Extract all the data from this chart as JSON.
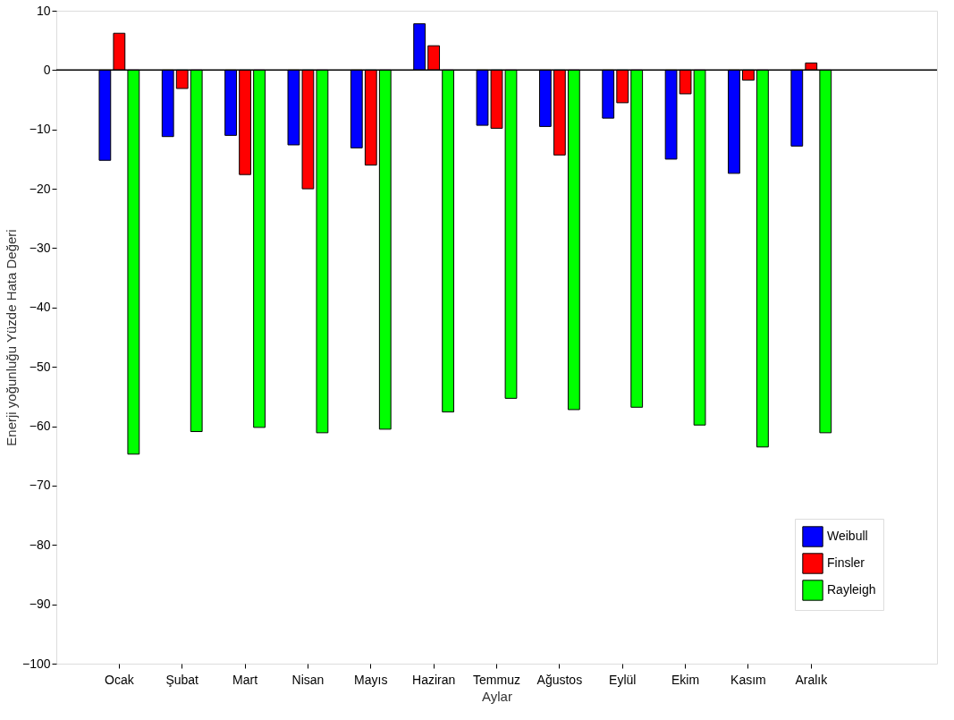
{
  "chart_data": {
    "type": "bar",
    "xlabel": "Aylar",
    "ylabel": "Enerji yoğunluğu Yüzde Hata Değeri",
    "categories": [
      "Ocak",
      "Şubat",
      "Mart",
      "Nisan",
      "Mayıs",
      "Haziran",
      "Temmuz",
      "Ağustos",
      "Eylül",
      "Ekim",
      "Kasım",
      "Aralık"
    ],
    "series": [
      {
        "name": "Weibull",
        "color": "#0000ff",
        "values": [
          -15.2,
          -11.2,
          -11.0,
          -12.6,
          -13.1,
          7.8,
          -9.3,
          -9.5,
          -8.1,
          -15.0,
          -17.4,
          -12.8
        ]
      },
      {
        "name": "Finsler",
        "color": "#ff0000",
        "values": [
          6.2,
          -3.1,
          -17.6,
          -20.0,
          -16.0,
          4.1,
          -9.8,
          -14.3,
          -5.5,
          -4.0,
          -1.7,
          1.2
        ]
      },
      {
        "name": "Rayleigh",
        "color": "#00ff00",
        "values": [
          -64.7,
          -60.9,
          -60.2,
          -61.1,
          -60.5,
          -57.6,
          -55.3,
          -57.2,
          -56.8,
          -59.8,
          -63.5,
          -61.1
        ]
      }
    ],
    "ylim": [
      -100,
      10
    ],
    "yticks": [
      -100,
      -90,
      -80,
      -70,
      -60,
      -50,
      -40,
      -30,
      -20,
      -10,
      0,
      10
    ],
    "ref_lines": [
      {
        "axis": "y",
        "value": 0,
        "color": "#000000"
      }
    ],
    "grid": false,
    "legend": "bottom right"
  }
}
